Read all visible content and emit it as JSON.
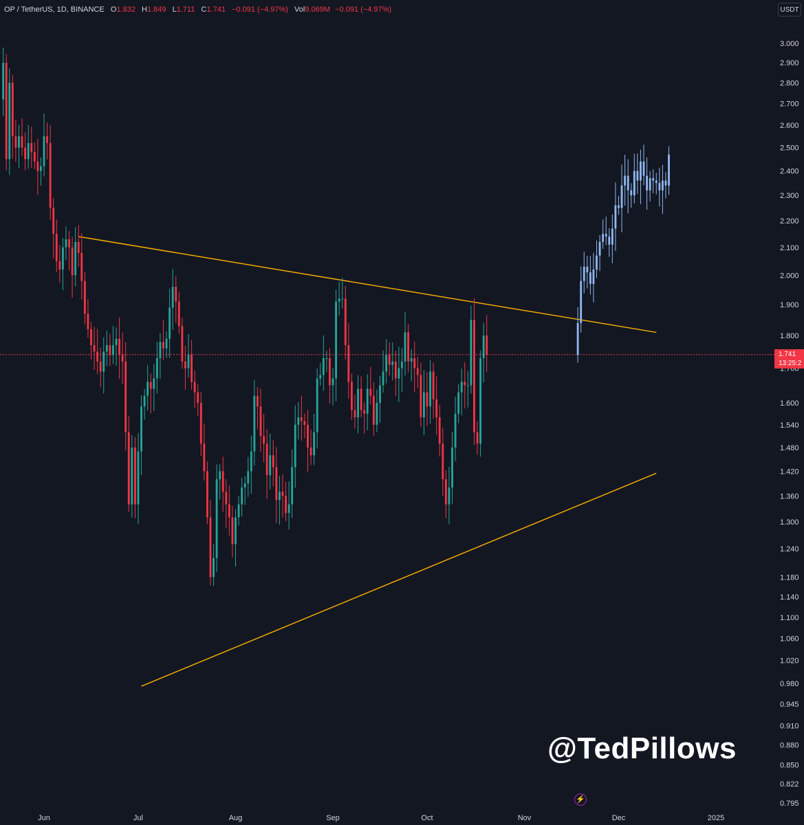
{
  "legend": {
    "symbol": "OP / TetherUS, 1D, BINANCE",
    "o_label": "O",
    "o": "1.832",
    "h_label": "H",
    "h": "1.849",
    "l_label": "L",
    "l": "1.711",
    "c_label": "C",
    "c": "1.741",
    "change": "−0.091 (−4.97%)",
    "vol_label": "Vol",
    "vol": "9.069M",
    "vol_change": "−0.091 (−4.97%)"
  },
  "unit_button": "USDT",
  "watermark": "@TedPillows",
  "last_price": {
    "value": "1.741",
    "countdown": "13:25:2"
  },
  "colors": {
    "background": "#131722",
    "up": "#26a69a",
    "down": "#f23645",
    "projection": "#90b8f0",
    "trendline": "#f2a900",
    "axis_text": "#d1d4dc"
  },
  "icons": {
    "bolt": "lightning-bolt-icon"
  },
  "chart_data": {
    "type": "candlestick",
    "interval": "1D",
    "scale": "log",
    "y_ticks": [
      "3.000",
      "2.900",
      "2.800",
      "2.700",
      "2.600",
      "2.500",
      "2.400",
      "2.300",
      "2.200",
      "2.100",
      "2.000",
      "1.900",
      "1.800",
      "1.700",
      "1.600",
      "1.540",
      "1.480",
      "1.420",
      "1.360",
      "1.300",
      "1.240",
      "1.180",
      "1.140",
      "1.100",
      "1.060",
      "1.020",
      "0.980",
      "0.945",
      "0.910",
      "0.880",
      "0.850",
      "0.822",
      "0.795"
    ],
    "x_ticks": [
      {
        "label": "Jun",
        "date": "2024-06-01"
      },
      {
        "label": "Jul",
        "date": "2024-07-01"
      },
      {
        "label": "Aug",
        "date": "2024-08-01"
      },
      {
        "label": "Sep",
        "date": "2024-09-01"
      },
      {
        "label": "Oct",
        "date": "2024-10-01"
      },
      {
        "label": "Nov",
        "date": "2024-11-01"
      },
      {
        "label": "Dec",
        "date": "2024-12-01"
      },
      {
        "label": "2025",
        "date": "2025-01-01"
      }
    ],
    "x_range": [
      "2024-05-20",
      "2025-01-24"
    ],
    "y_range": [
      0.78,
      3.1
    ],
    "candles_start": "2024-05-19",
    "candles_close": [
      2.9,
      2.45,
      2.8,
      2.55,
      2.5,
      2.55,
      2.5,
      2.45,
      2.52,
      2.48,
      2.44,
      2.4,
      2.42,
      2.55,
      2.52,
      2.25,
      2.15,
      2.05,
      2.02,
      2.1,
      2.13,
      2.1,
      2.0,
      2.12,
      2.08,
      1.98,
      1.87,
      1.82,
      1.77,
      1.75,
      1.72,
      1.69,
      1.75,
      1.77,
      1.74,
      1.77,
      1.79,
      1.74,
      1.72,
      1.52,
      1.34,
      1.48,
      1.34,
      1.47,
      1.59,
      1.62,
      1.66,
      1.64,
      1.67,
      1.73,
      1.78,
      1.76,
      1.79,
      1.89,
      1.96,
      1.91,
      1.83,
      1.72,
      1.7,
      1.74,
      1.66,
      1.63,
      1.6,
      1.49,
      1.42,
      1.31,
      1.18,
      1.22,
      1.4,
      1.42,
      1.37,
      1.34,
      1.31,
      1.25,
      1.31,
      1.34,
      1.38,
      1.39,
      1.42,
      1.47,
      1.62,
      1.59,
      1.51,
      1.49,
      1.41,
      1.46,
      1.43,
      1.35,
      1.37,
      1.36,
      1.32,
      1.34,
      1.43,
      1.54,
      1.56,
      1.55,
      1.54,
      1.48,
      1.46,
      1.52,
      1.67,
      1.68,
      1.73,
      1.73,
      1.65,
      1.67,
      1.91,
      1.92,
      1.92,
      1.77,
      1.66,
      1.58,
      1.56,
      1.64,
      1.58,
      1.57,
      1.64,
      1.62,
      1.54,
      1.6,
      1.65,
      1.69,
      1.74,
      1.71,
      1.72,
      1.67,
      1.7,
      1.72,
      1.81,
      1.72,
      1.73,
      1.7,
      1.68,
      1.56,
      1.63,
      1.59,
      1.69,
      1.61,
      1.56,
      1.49,
      1.4,
      1.34,
      1.38,
      1.48,
      1.57,
      1.63,
      1.66,
      1.65,
      1.65,
      1.85,
      1.52,
      1.49,
      1.73,
      1.8,
      1.741
    ],
    "projection_start": "2024-11-18",
    "projection_close": [
      1.84,
      1.98,
      2.03,
      2.01,
      1.97,
      2.02,
      2.07,
      2.12,
      2.15,
      2.14,
      2.11,
      2.17,
      2.26,
      2.25,
      2.34,
      2.38,
      2.32,
      2.3,
      2.4,
      2.36,
      2.44,
      2.38,
      2.32,
      2.37,
      2.36,
      2.35,
      2.32,
      2.36,
      2.34,
      2.47
    ],
    "trendlines": [
      {
        "from": {
          "date": "2024-06-12",
          "price": 2.14
        },
        "to": {
          "date": "2024-12-13",
          "price": 1.81
        }
      },
      {
        "from": {
          "date": "2024-07-02",
          "price": 0.975
        },
        "to": {
          "date": "2024-12-13",
          "price": 1.415
        }
      }
    ]
  }
}
